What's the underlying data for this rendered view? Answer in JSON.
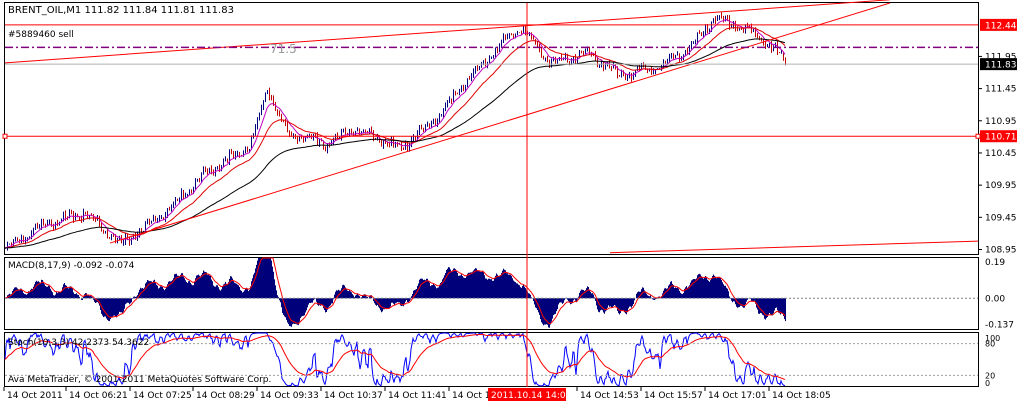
{
  "header": {
    "symbol_line": "BRENT_OIL,M1  111.82 111.84 111.81 111.83",
    "order_label": "#5889460 sell",
    "fib_label": "71.5"
  },
  "colors": {
    "candle_bull": "#ffffff",
    "candle_bear": "#0a0a0a",
    "ma_fast": "#c000c0",
    "ma_mid": "#e00000",
    "ma_slow": "#000000",
    "trend": "#ff0000",
    "order_line": "#800080",
    "macd_hist": "#00007a",
    "signal": "#ff0000",
    "stoch_main": "#0000ff",
    "stoch_signal": "#ff0000",
    "hline": "#ff0000"
  },
  "chart_data": {
    "type": "candlestick",
    "symbol": "BRENT_OIL",
    "timeframe": "M1",
    "ohlc_last": {
      "open": 111.82,
      "high": 111.84,
      "low": 111.81,
      "close": 111.83
    },
    "price_axis_ticks": [
      "111.95",
      "111.45",
      "110.95",
      "110.45",
      "109.95",
      "109.45",
      "108.95"
    ],
    "price_ylim": [
      108.88,
      112.78
    ],
    "price_tags": [
      {
        "label": "112.44",
        "price": 112.44,
        "style": "red"
      },
      {
        "label": "111.83",
        "price": 111.83,
        "style": "black"
      },
      {
        "label": "110.71",
        "price": 110.71,
        "style": "red"
      }
    ],
    "order_line_price": 112.09,
    "time_axis_labels": [
      "14 Oct 2011",
      "14 Oct 06:21",
      "14 Oct 07:25",
      "14 Oct 08:29",
      "14 Oct 09:33",
      "14 Oct 10:37",
      "14 Oct 11:41",
      "14 Oct 12:",
      "2011.10.14 14:00",
      "14 Oct 14:53",
      "14 Oct 15:57",
      "14 Oct 17:01",
      "14 Oct 18:05"
    ],
    "crosshair_label": "2011.10.14 14:00",
    "price_anchors": [
      {
        "t": 0,
        "v": 108.98
      },
      {
        "t": 40,
        "v": 109.35
      },
      {
        "t": 80,
        "v": 109.52
      },
      {
        "t": 115,
        "v": 109.02
      },
      {
        "t": 160,
        "v": 109.52
      },
      {
        "t": 200,
        "v": 110.15
      },
      {
        "t": 245,
        "v": 110.55
      },
      {
        "t": 262,
        "v": 111.45
      },
      {
        "t": 282,
        "v": 110.75
      },
      {
        "t": 320,
        "v": 110.6
      },
      {
        "t": 350,
        "v": 110.8
      },
      {
        "t": 395,
        "v": 110.52
      },
      {
        "t": 430,
        "v": 110.95
      },
      {
        "t": 462,
        "v": 111.6
      },
      {
        "t": 490,
        "v": 112.05
      },
      {
        "t": 515,
        "v": 112.4
      },
      {
        "t": 545,
        "v": 111.85
      },
      {
        "t": 585,
        "v": 112.0
      },
      {
        "t": 615,
        "v": 111.65
      },
      {
        "t": 655,
        "v": 111.8
      },
      {
        "t": 685,
        "v": 112.1
      },
      {
        "t": 710,
        "v": 112.55
      },
      {
        "t": 745,
        "v": 112.35
      },
      {
        "t": 770,
        "v": 112.05
      },
      {
        "t": 780,
        "v": 111.83
      }
    ],
    "macd": {
      "label": "MACD(8,17,9) -0.092 -0.074",
      "params": [
        8,
        17,
        9
      ],
      "main": -0.092,
      "signal": -0.074,
      "ticks": [
        "0.19",
        "0.00",
        "-0.137"
      ],
      "ylim": [
        -0.16,
        0.21
      ]
    },
    "stochastic": {
      "label": "Stoch(10,3,3) 42.2373 54.3622",
      "params": [
        10,
        3,
        3
      ],
      "main": 42.2373,
      "signal": 54.3622,
      "ticks": [
        "100",
        "80",
        "20",
        "0"
      ],
      "ylim": [
        0,
        100
      ]
    },
    "footer": "Ava MetaTrader, © 2001-2011 MetaQuotes Software Corp."
  }
}
